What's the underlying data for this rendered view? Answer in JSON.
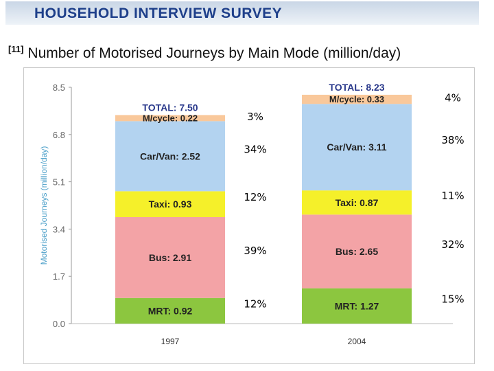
{
  "header": {
    "banner": "HOUSEHOLD INTERVIEW SURVEY"
  },
  "chart_title": {
    "ref": "[11]",
    "text": "Number of Motorised Journeys by Main Mode (million/day)"
  },
  "chart_data": {
    "type": "bar",
    "stacked": true,
    "title": "Number of Motorised Journeys by Main Mode (million/day)",
    "xlabel": "",
    "ylabel": "Motorised Journeys (million/day)",
    "ylim": [
      0,
      8.5
    ],
    "yticks": [
      "0.0",
      "1.7",
      "3.4",
      "5.1",
      "6.8",
      "8.5"
    ],
    "categories": [
      "1997",
      "2004"
    ],
    "series": [
      {
        "name": "MRT",
        "values": [
          0.92,
          1.27
        ],
        "labels": [
          "MRT: 0.92",
          "MRT: 1.27"
        ],
        "percent": [
          "12%",
          "15%"
        ],
        "color": "#8cc63f"
      },
      {
        "name": "Bus",
        "values": [
          2.91,
          2.65
        ],
        "labels": [
          "Bus: 2.91",
          "Bus: 2.65"
        ],
        "percent": [
          "39%",
          "32%"
        ],
        "color": "#f3a3a6"
      },
      {
        "name": "Taxi",
        "values": [
          0.93,
          0.87
        ],
        "labels": [
          "Taxi: 0.93",
          "Taxi: 0.87"
        ],
        "percent": [
          "12%",
          "11%"
        ],
        "color": "#f5f02a"
      },
      {
        "name": "Car/Van",
        "values": [
          2.52,
          3.11
        ],
        "labels": [
          "Car/Van: 2.52",
          "Car/Van: 3.11"
        ],
        "percent": [
          "34%",
          "38%"
        ],
        "color": "#b3d3f0"
      },
      {
        "name": "M/cycle",
        "values": [
          0.22,
          0.33
        ],
        "labels": [
          "M/cycle: 0.22",
          "M/cycle: 0.33"
        ],
        "percent": [
          "3%",
          "4%"
        ],
        "color": "#f9c89b"
      }
    ],
    "totals": [
      "TOTAL: 7.50",
      "TOTAL: 8.23"
    ],
    "total_values": [
      7.5,
      8.23
    ],
    "grid": false
  }
}
